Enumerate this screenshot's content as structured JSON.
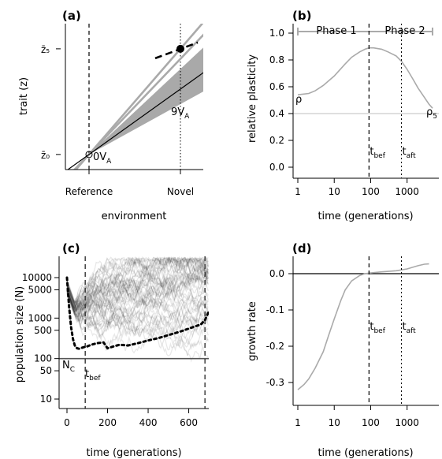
{
  "colors": {
    "gray_line": "#aaaaaa",
    "gray_fill": "#a9a9a9",
    "black": "#000000",
    "ref_line": "#cccccc"
  },
  "chart_data": [
    {
      "panel": "(a)",
      "type": "line",
      "xlabel": "environment",
      "ylabel": "trait (z)",
      "x_ticks": [
        "Reference",
        "Novel"
      ],
      "y_ticks": [
        "z̄₀",
        "z̄₅"
      ],
      "annotations": {
        "start": "0V",
        "start_sub": "A",
        "end": "9V",
        "end_sub": "A"
      },
      "x": [
        0,
        1
      ],
      "series": [
        {
          "values": [
            0,
            1.05
          ]
        },
        {
          "values": [
            0,
            0.65
          ]
        },
        {
          "values": [
            0,
            0.95
          ]
        }
      ],
      "band_upper": [
        0,
        0.85
      ],
      "band_lower": [
        0,
        0.5
      ],
      "point": [
        1,
        1.05
      ],
      "ylim": [
        -0.15,
        1.3
      ],
      "grid": false
    },
    {
      "panel": "(b)",
      "type": "line",
      "xlabel": "time (generations)",
      "ylabel": "relative plasticity",
      "scale_x": "log",
      "xlim": [
        1,
        5000
      ],
      "ylim": [
        -0.05,
        1.05
      ],
      "x_ticks": [
        "1",
        "10",
        "100",
        "1000"
      ],
      "y_ticks": [
        "0.0",
        "0.2",
        "0.4",
        "0.6",
        "0.8",
        "1.0"
      ],
      "phases": [
        "Phase 1",
        "Phase 2"
      ],
      "vlines": [
        {
          "label": "t",
          "sub": "bef",
          "x": 90
        },
        {
          "label": "t",
          "sub": "aft",
          "x": 700
        }
      ],
      "hline": 0.4,
      "labels": {
        "start": "ρ",
        "end": "ρ",
        "end_sub": "5"
      },
      "x": [
        1,
        2,
        3,
        5,
        10,
        20,
        30,
        50,
        70,
        90,
        120,
        200,
        300,
        500,
        700,
        1000,
        1500,
        2000,
        3000,
        4000,
        5000
      ],
      "values": [
        0.54,
        0.55,
        0.57,
        0.61,
        0.68,
        0.77,
        0.82,
        0.86,
        0.88,
        0.89,
        0.89,
        0.88,
        0.86,
        0.83,
        0.79,
        0.73,
        0.65,
        0.59,
        0.52,
        0.47,
        0.44
      ],
      "grid": false
    },
    {
      "panel": "(c)",
      "type": "line",
      "xlabel": "time (generations)",
      "ylabel": "population size (N)",
      "scale_y": "log",
      "xlim": [
        -20,
        700
      ],
      "ylim": [
        7,
        25000
      ],
      "x_ticks": [
        "0",
        "200",
        "400",
        "600"
      ],
      "y_ticks": [
        "10",
        "50",
        "100",
        "500",
        "1000",
        "5000",
        "10000"
      ],
      "hline_label": "N",
      "hline_label_sub": "C",
      "hline": 100,
      "vline_label": "t",
      "vline_label_sub": "bef",
      "vlines": [
        90,
        680
      ],
      "x": [
        0,
        10,
        20,
        30,
        40,
        50,
        60,
        80,
        100,
        120,
        150,
        180,
        200,
        230,
        260,
        300,
        350,
        400,
        450,
        500,
        550,
        600,
        630,
        660,
        680,
        700
      ],
      "values": [
        10000,
        2000,
        600,
        300,
        200,
        180,
        175,
        190,
        200,
        220,
        240,
        250,
        180,
        200,
        220,
        210,
        240,
        280,
        320,
        380,
        450,
        550,
        620,
        700,
        900,
        1500
      ],
      "grid": false
    },
    {
      "panel": "(d)",
      "type": "line",
      "xlabel": "time (generations)",
      "ylabel": "growth rate",
      "scale_x": "log",
      "xlim": [
        1,
        5000
      ],
      "ylim": [
        -0.33,
        0.04
      ],
      "x_ticks": [
        "1",
        "10",
        "100",
        "1000"
      ],
      "y_ticks": [
        "0.0",
        "-0.1",
        "-0.2",
        "-0.3"
      ],
      "hline": 0,
      "vlines": [
        {
          "label": "t",
          "sub": "bef",
          "x": 90
        },
        {
          "label": "t",
          "sub": "aft",
          "x": 700
        }
      ],
      "x": [
        1,
        1.5,
        2,
        3,
        5,
        7,
        10,
        15,
        20,
        30,
        50,
        70,
        100,
        200,
        500,
        1000,
        2000,
        3000,
        4000
      ],
      "values": [
        -0.32,
        -0.305,
        -0.29,
        -0.26,
        -0.215,
        -0.17,
        -0.125,
        -0.075,
        -0.045,
        -0.02,
        -0.005,
        0.0,
        0.002,
        0.005,
        0.008,
        0.013,
        0.022,
        0.026,
        0.027
      ],
      "grid": false
    }
  ]
}
